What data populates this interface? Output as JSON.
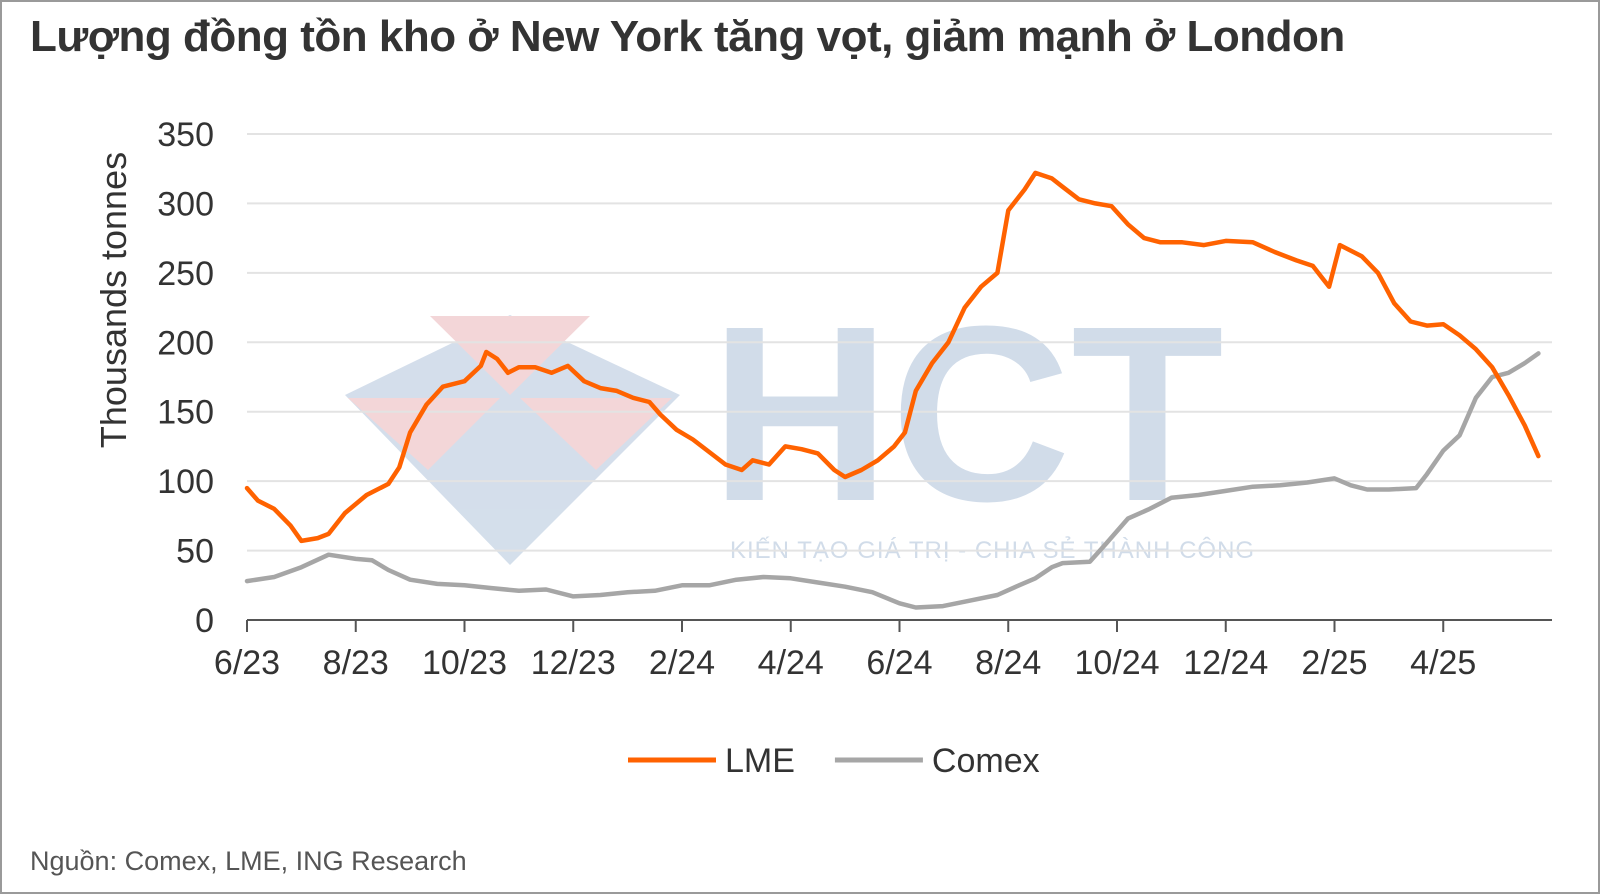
{
  "title": "Lượng đồng tồn kho ở New York tăng vọt, giảm mạnh ở London",
  "source": "Nguồn: Comex, LME, ING Research",
  "watermark": {
    "letters": "HCT",
    "tagline": "KIẾN TẠO GIÁ TRỊ - CHIA SẺ THÀNH CÔNG"
  },
  "chart_data": {
    "type": "line",
    "ylabel": "Thousands tonnes",
    "ylim": [
      0,
      350
    ],
    "yticks": [
      0,
      50,
      100,
      150,
      200,
      250,
      300,
      350
    ],
    "xlim": [
      0,
      24
    ],
    "xticks": [
      {
        "label": "6/23",
        "x": 0
      },
      {
        "label": "8/23",
        "x": 2
      },
      {
        "label": "10/23",
        "x": 4
      },
      {
        "label": "12/23",
        "x": 6
      },
      {
        "label": "2/24",
        "x": 8
      },
      {
        "label": "4/24",
        "x": 10
      },
      {
        "label": "6/24",
        "x": 12
      },
      {
        "label": "8/24",
        "x": 14
      },
      {
        "label": "10/24",
        "x": 16
      },
      {
        "label": "12/24",
        "x": 18
      },
      {
        "label": "2/25",
        "x": 20
      },
      {
        "label": "4/25",
        "x": 22
      }
    ],
    "grid": true,
    "legend_position": "bottom",
    "series": [
      {
        "name": "LME",
        "color": "#ff6200",
        "points": [
          [
            0,
            95
          ],
          [
            0.2,
            86
          ],
          [
            0.5,
            80
          ],
          [
            0.8,
            68
          ],
          [
            1.0,
            57
          ],
          [
            1.3,
            59
          ],
          [
            1.5,
            62
          ],
          [
            1.8,
            77
          ],
          [
            2.2,
            90
          ],
          [
            2.6,
            98
          ],
          [
            2.8,
            110
          ],
          [
            3.0,
            135
          ],
          [
            3.3,
            155
          ],
          [
            3.6,
            168
          ],
          [
            4.0,
            172
          ],
          [
            4.3,
            183
          ],
          [
            4.4,
            193
          ],
          [
            4.6,
            188
          ],
          [
            4.8,
            178
          ],
          [
            5.0,
            182
          ],
          [
            5.3,
            182
          ],
          [
            5.6,
            178
          ],
          [
            5.9,
            183
          ],
          [
            6.2,
            172
          ],
          [
            6.5,
            167
          ],
          [
            6.8,
            165
          ],
          [
            7.1,
            160
          ],
          [
            7.4,
            157
          ],
          [
            7.6,
            148
          ],
          [
            7.9,
            137
          ],
          [
            8.2,
            130
          ],
          [
            8.5,
            121
          ],
          [
            8.8,
            112
          ],
          [
            9.1,
            108
          ],
          [
            9.3,
            115
          ],
          [
            9.6,
            112
          ],
          [
            9.9,
            125
          ],
          [
            10.2,
            123
          ],
          [
            10.5,
            120
          ],
          [
            10.8,
            108
          ],
          [
            11.0,
            103
          ],
          [
            11.3,
            108
          ],
          [
            11.6,
            115
          ],
          [
            11.9,
            125
          ],
          [
            12.1,
            135
          ],
          [
            12.3,
            165
          ],
          [
            12.6,
            185
          ],
          [
            12.9,
            200
          ],
          [
            13.2,
            225
          ],
          [
            13.5,
            240
          ],
          [
            13.8,
            250
          ],
          [
            14.0,
            295
          ],
          [
            14.3,
            310
          ],
          [
            14.5,
            322
          ],
          [
            14.8,
            318
          ],
          [
            15.0,
            312
          ],
          [
            15.3,
            303
          ],
          [
            15.6,
            300
          ],
          [
            15.9,
            298
          ],
          [
            16.2,
            285
          ],
          [
            16.5,
            275
          ],
          [
            16.8,
            272
          ],
          [
            17.2,
            272
          ],
          [
            17.6,
            270
          ],
          [
            18.0,
            273
          ],
          [
            18.5,
            272
          ],
          [
            18.9,
            265
          ],
          [
            19.3,
            259
          ],
          [
            19.6,
            255
          ],
          [
            19.8,
            245
          ],
          [
            19.9,
            240
          ],
          [
            20.1,
            270
          ],
          [
            20.5,
            262
          ],
          [
            20.8,
            250
          ],
          [
            21.1,
            228
          ],
          [
            21.4,
            215
          ],
          [
            21.7,
            212
          ],
          [
            22.0,
            213
          ],
          [
            22.3,
            205
          ],
          [
            22.6,
            195
          ],
          [
            22.9,
            182
          ],
          [
            23.2,
            162
          ],
          [
            23.5,
            140
          ],
          [
            23.75,
            118
          ]
        ]
      },
      {
        "name": "Comex",
        "color": "#a6a6a6",
        "points": [
          [
            0,
            28
          ],
          [
            0.5,
            31
          ],
          [
            1.0,
            38
          ],
          [
            1.5,
            47
          ],
          [
            2.0,
            44
          ],
          [
            2.3,
            43
          ],
          [
            2.6,
            36
          ],
          [
            3.0,
            29
          ],
          [
            3.5,
            26
          ],
          [
            4.0,
            25
          ],
          [
            4.5,
            23
          ],
          [
            5.0,
            21
          ],
          [
            5.5,
            22
          ],
          [
            6.0,
            17
          ],
          [
            6.5,
            18
          ],
          [
            7.0,
            20
          ],
          [
            7.5,
            21
          ],
          [
            8.0,
            25
          ],
          [
            8.5,
            25
          ],
          [
            9.0,
            29
          ],
          [
            9.5,
            31
          ],
          [
            10.0,
            30
          ],
          [
            10.5,
            27
          ],
          [
            11.0,
            24
          ],
          [
            11.5,
            20
          ],
          [
            12.0,
            12
          ],
          [
            12.3,
            9
          ],
          [
            12.8,
            10
          ],
          [
            13.3,
            14
          ],
          [
            13.8,
            18
          ],
          [
            14.2,
            25
          ],
          [
            14.5,
            30
          ],
          [
            14.8,
            38
          ],
          [
            15.0,
            41
          ],
          [
            15.5,
            42
          ],
          [
            15.8,
            55
          ],
          [
            16.2,
            73
          ],
          [
            16.6,
            80
          ],
          [
            17.0,
            88
          ],
          [
            17.5,
            90
          ],
          [
            18.0,
            93
          ],
          [
            18.5,
            96
          ],
          [
            19.0,
            97
          ],
          [
            19.5,
            99
          ],
          [
            20.0,
            102
          ],
          [
            20.3,
            97
          ],
          [
            20.6,
            94
          ],
          [
            21.0,
            94
          ],
          [
            21.5,
            95
          ],
          [
            21.7,
            105
          ],
          [
            22.0,
            122
          ],
          [
            22.3,
            133
          ],
          [
            22.6,
            160
          ],
          [
            22.9,
            175
          ],
          [
            23.2,
            178
          ],
          [
            23.5,
            185
          ],
          [
            23.75,
            192
          ]
        ]
      }
    ]
  }
}
